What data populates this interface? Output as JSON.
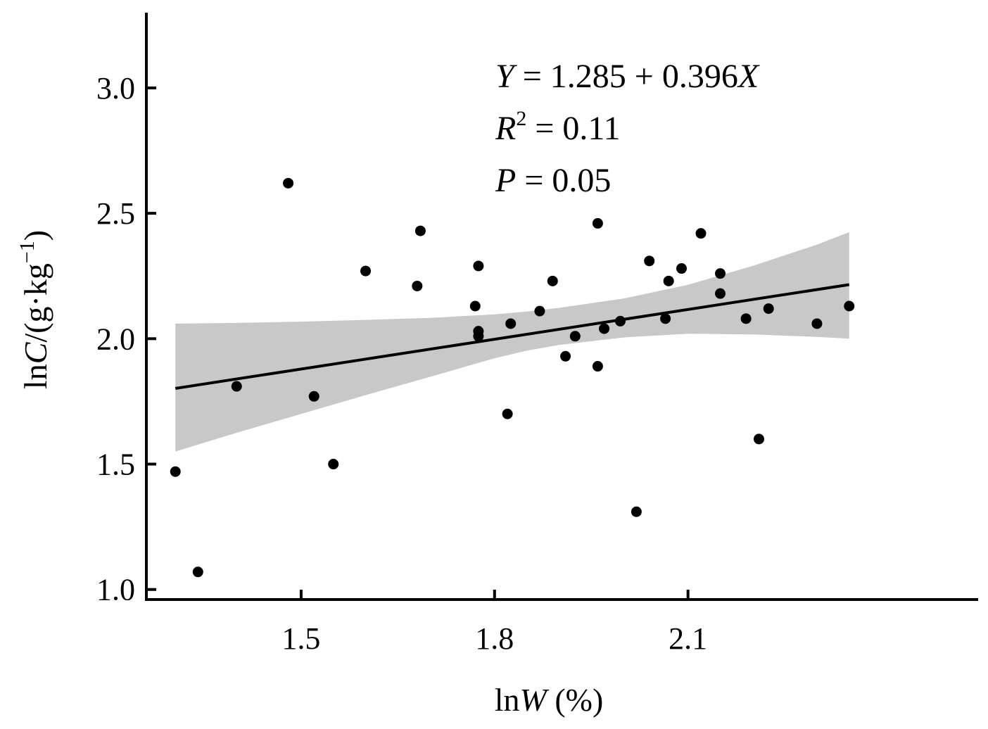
{
  "chart_data": {
    "type": "scatter",
    "x_ticks": [
      "1.5",
      "1.8",
      "2.1"
    ],
    "y_ticks": [
      "1.0",
      "1.5",
      "2.0",
      "2.5",
      "3.0"
    ],
    "x_tick_values": [
      1.5,
      1.8,
      2.1
    ],
    "y_tick_values": [
      1.0,
      1.5,
      2.0,
      2.5,
      3.0
    ],
    "xlim": [
      1.26,
      2.55
    ],
    "ylim": [
      0.96,
      3.3
    ],
    "xlabel_parts": {
      "prefix": "ln",
      "var": "W",
      "unit": " (%)"
    },
    "ylabel_parts": {
      "prefix": "ln",
      "var": "C",
      "unit": "/(g·kg",
      "sup": "−1",
      "close": ")"
    },
    "annotation": {
      "line1": {
        "y": "Y",
        "expr": " = 1.285 + 0.396",
        "x": "X"
      },
      "line2": {
        "r": "R",
        "sup": "2",
        "expr": " = 0.11"
      },
      "line3": {
        "p": "P",
        "expr": " = 0.05"
      }
    },
    "regression": {
      "intercept": 1.285,
      "slope": 0.396,
      "x_start": 1.305,
      "x_end": 2.35
    },
    "confidence_band": {
      "x": [
        1.305,
        1.4,
        1.5,
        1.6,
        1.7,
        1.8,
        1.85,
        1.9,
        2.0,
        2.1,
        2.2,
        2.3,
        2.35
      ],
      "upper": [
        2.06,
        2.063,
        2.068,
        2.075,
        2.083,
        2.097,
        2.108,
        2.123,
        2.16,
        2.215,
        2.29,
        2.375,
        2.425
      ],
      "lower": [
        1.55,
        1.625,
        1.7,
        1.775,
        1.848,
        1.922,
        1.952,
        1.975,
        2.005,
        2.02,
        2.017,
        2.007,
        2.0
      ]
    },
    "band_color": "#c8c8c8",
    "point_color": "#000000",
    "points": {
      "x": [
        1.305,
        1.34,
        1.4,
        1.48,
        1.52,
        1.55,
        1.6,
        1.68,
        1.685,
        1.77,
        1.775,
        1.775,
        1.775,
        1.82,
        1.825,
        1.87,
        1.89,
        1.91,
        1.925,
        1.96,
        1.96,
        1.97,
        1.995,
        2.02,
        2.04,
        2.065,
        2.07,
        2.09,
        2.12,
        2.15,
        2.15,
        2.19,
        2.21,
        2.225,
        2.3,
        2.35
      ],
      "y": [
        1.47,
        1.07,
        1.81,
        2.62,
        1.77,
        1.5,
        2.27,
        2.21,
        2.43,
        2.13,
        2.29,
        2.03,
        2.01,
        1.7,
        2.06,
        2.11,
        2.23,
        1.93,
        2.01,
        2.46,
        1.89,
        2.04,
        2.07,
        1.31,
        2.31,
        2.08,
        2.23,
        2.28,
        2.42,
        2.26,
        2.18,
        2.08,
        1.6,
        2.12,
        2.06,
        2.13
      ]
    }
  }
}
